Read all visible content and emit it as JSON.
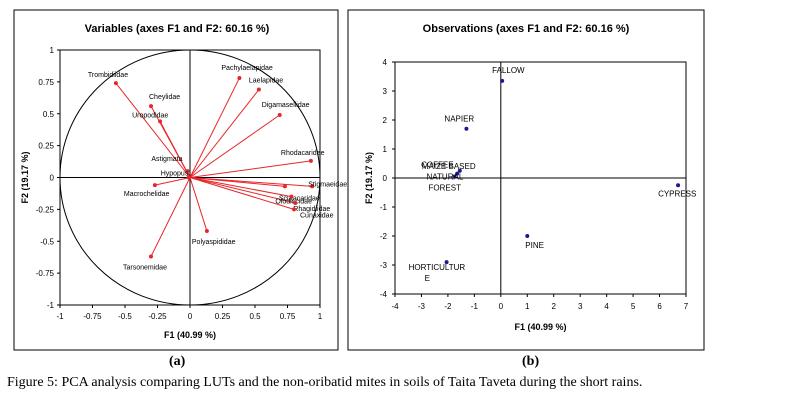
{
  "figure": {
    "panel_a_label": "(a)",
    "panel_b_label": "(b)",
    "caption": "Figure 5: PCA analysis comparing LUTs and the non-oribatid mites in soils of Taita Taveta during the short rains."
  },
  "chart_data": [
    {
      "type": "scatter",
      "title": "Variables (axes F1 and F2: 60.16 %)",
      "xlabel": "F1 (40.99 %)",
      "ylabel": "F2 (19.17 %)",
      "xlim": [
        -1,
        1
      ],
      "ylim": [
        -1,
        1
      ],
      "xticks": [
        "-1",
        "-0.75",
        "-0.5",
        "-0.25",
        "0",
        "0.25",
        "0.5",
        "0.75",
        "1"
      ],
      "yticks": [
        "1",
        "0.75",
        "0.5",
        "0.25",
        "0",
        "-0.25",
        "-0.5",
        "-0.75",
        "-1"
      ],
      "point_color": "#e8262a",
      "vectors_from_origin": true,
      "points": [
        {
          "label": "Trombidiidae",
          "x": -0.57,
          "y": 0.74
        },
        {
          "label": "Cheylidae",
          "x": -0.3,
          "y": 0.56
        },
        {
          "label": "Uropodidae",
          "x": -0.23,
          "y": 0.44
        },
        {
          "label": "Pachylaelapidae",
          "x": 0.38,
          "y": 0.78
        },
        {
          "label": "Laelapidae",
          "x": 0.53,
          "y": 0.69
        },
        {
          "label": "Digamasellidae",
          "x": 0.69,
          "y": 0.49
        },
        {
          "label": "Rhodacaridae",
          "x": 0.93,
          "y": 0.13
        },
        {
          "label": "Astigmata",
          "x": -0.02,
          "y": 0.05
        },
        {
          "label": "Hypopus",
          "x": -0.01,
          "y": 0.0
        },
        {
          "label": "Macrochelidae",
          "x": -0.27,
          "y": -0.06
        },
        {
          "label": "Scutacaridae",
          "x": 0.73,
          "y": -0.07
        },
        {
          "label": "Stigmaeidae",
          "x": 0.94,
          "y": -0.07
        },
        {
          "label": "Olodiscidae",
          "x": 0.78,
          "y": -0.15
        },
        {
          "label": "Rhagidiidae",
          "x": 0.81,
          "y": -0.2
        },
        {
          "label": "Cunaxidae",
          "x": 0.8,
          "y": -0.25
        },
        {
          "label": "Polyaspididae",
          "x": 0.13,
          "y": -0.42
        },
        {
          "label": "Tarsonemidae",
          "x": -0.3,
          "y": -0.62
        }
      ]
    },
    {
      "type": "scatter",
      "title": "Observations (axes F1 and F2: 60.16 %)",
      "xlabel": "F1 (40.99 %)",
      "ylabel": "F2 (19.17 %)",
      "xlim": [
        -4,
        7
      ],
      "ylim": [
        -4,
        4
      ],
      "xticks": [
        "-4",
        "-3",
        "-2",
        "-1",
        "0",
        "1",
        "2",
        "3",
        "4",
        "5",
        "6",
        "7"
      ],
      "yticks": [
        "4",
        "3",
        "2",
        "1",
        "0",
        "-1",
        "-2",
        "-3",
        "-4"
      ],
      "point_color": "#1a1a8c",
      "points": [
        {
          "label": "FALLOW",
          "x": 0.05,
          "y": 3.35
        },
        {
          "label": "NAPIER",
          "x": -1.3,
          "y": 1.7
        },
        {
          "label": "MAIZE BASED",
          "x": -1.55,
          "y": 0.25
        },
        {
          "label": "COFFEE",
          "x": -1.65,
          "y": 0.15
        },
        {
          "label": "NATURAL FOREST",
          "x": -1.75,
          "y": 0.05
        },
        {
          "label": "CYPRESS",
          "x": 6.7,
          "y": -0.25
        },
        {
          "label": "PINE",
          "x": 1.0,
          "y": -2.0
        },
        {
          "label": "HORTICULTURE",
          "x": -2.05,
          "y": -2.9
        }
      ]
    }
  ]
}
